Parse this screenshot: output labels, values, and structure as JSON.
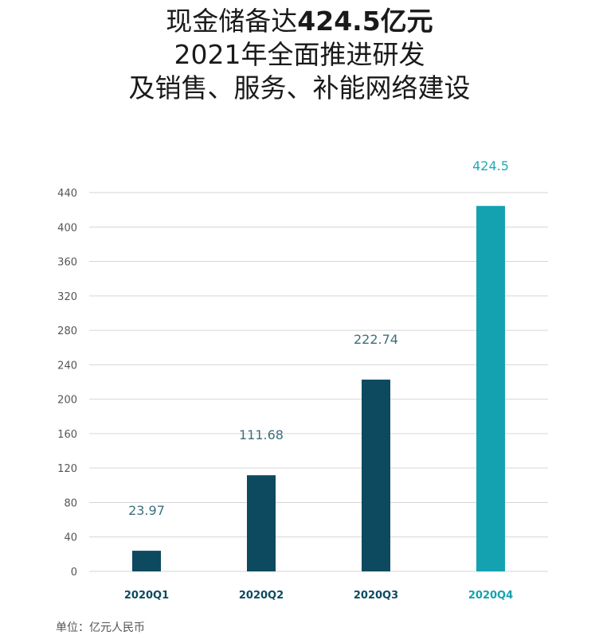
{
  "title": {
    "line1_prefix": "现金储备达",
    "line1_highlight": "424.5亿元",
    "line2": "2021年全面推进研发",
    "line3": "及销售、服务、补能网络建设"
  },
  "unit_note": "单位：亿元人民币",
  "colors": {
    "bar_default": "#0d4a60",
    "bar_highlight": "#15a2b0",
    "label_default": "#3c6f7e",
    "label_highlight": "#21a9b6",
    "grid": "#d6d6d6",
    "tick": "#555555"
  },
  "chart_data": {
    "type": "bar",
    "categories": [
      "2020Q1",
      "2020Q2",
      "2020Q3",
      "2020Q4"
    ],
    "values": [
      23.97,
      111.68,
      222.74,
      424.5
    ],
    "data_labels": [
      "23.97",
      "111.68",
      "222.74",
      "424.5"
    ],
    "highlight_index": 3,
    "ylim": [
      0,
      440
    ],
    "yticks": [
      0,
      40,
      80,
      120,
      160,
      200,
      240,
      280,
      320,
      360,
      400,
      440
    ],
    "grid": true,
    "xlabel": "",
    "ylabel": ""
  }
}
